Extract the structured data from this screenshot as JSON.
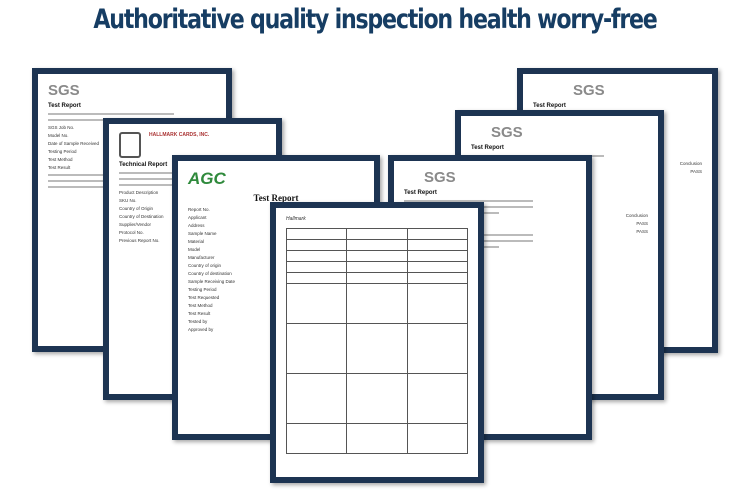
{
  "title": "Authoritative quality inspection health worry-free",
  "documents": [
    {
      "logo": "SGS",
      "heading": "Test Report",
      "rows": [
        "SGS Job No.",
        "Model No.",
        "Date of Sample Received",
        "Testing Period",
        "Test Method",
        "Test Result"
      ]
    },
    {
      "logo": "HALLMARK CARDS, INC.",
      "heading": "Technical Report",
      "rows": [
        "Product Description",
        "SKU No.",
        "Country of Origin",
        "Country of Destination",
        "Supplier/Vendor",
        "Protocol No.",
        "Previous Report No."
      ]
    },
    {
      "logo": "AGC",
      "heading": "Test Report",
      "rows": [
        "Report No.",
        "Applicant",
        "Address",
        "Sample Name",
        "Material",
        "Model",
        "Manufacturer",
        "Country of origin",
        "Country of destination",
        "Sample Receiving Date",
        "Testing Period",
        "Test Requested",
        "Test Method",
        "Test Result",
        "Tested by",
        "Approved by"
      ]
    },
    {
      "logo": "SGS",
      "heading": "Test Report",
      "rows": [
        "Conclusion",
        "PASS"
      ]
    },
    {
      "logo": "SGS",
      "heading": "Test Report",
      "rows": [
        "Conclusion",
        "PASS",
        "PASS"
      ]
    },
    {
      "logo": "SGS",
      "heading": "Test Report",
      "rows": []
    },
    {
      "logo": "Hallmark",
      "heading": "",
      "rows": []
    }
  ],
  "colors": {
    "title": "#163d63",
    "frame": "#1d3452",
    "agc_green": "#2f8a3c"
  }
}
